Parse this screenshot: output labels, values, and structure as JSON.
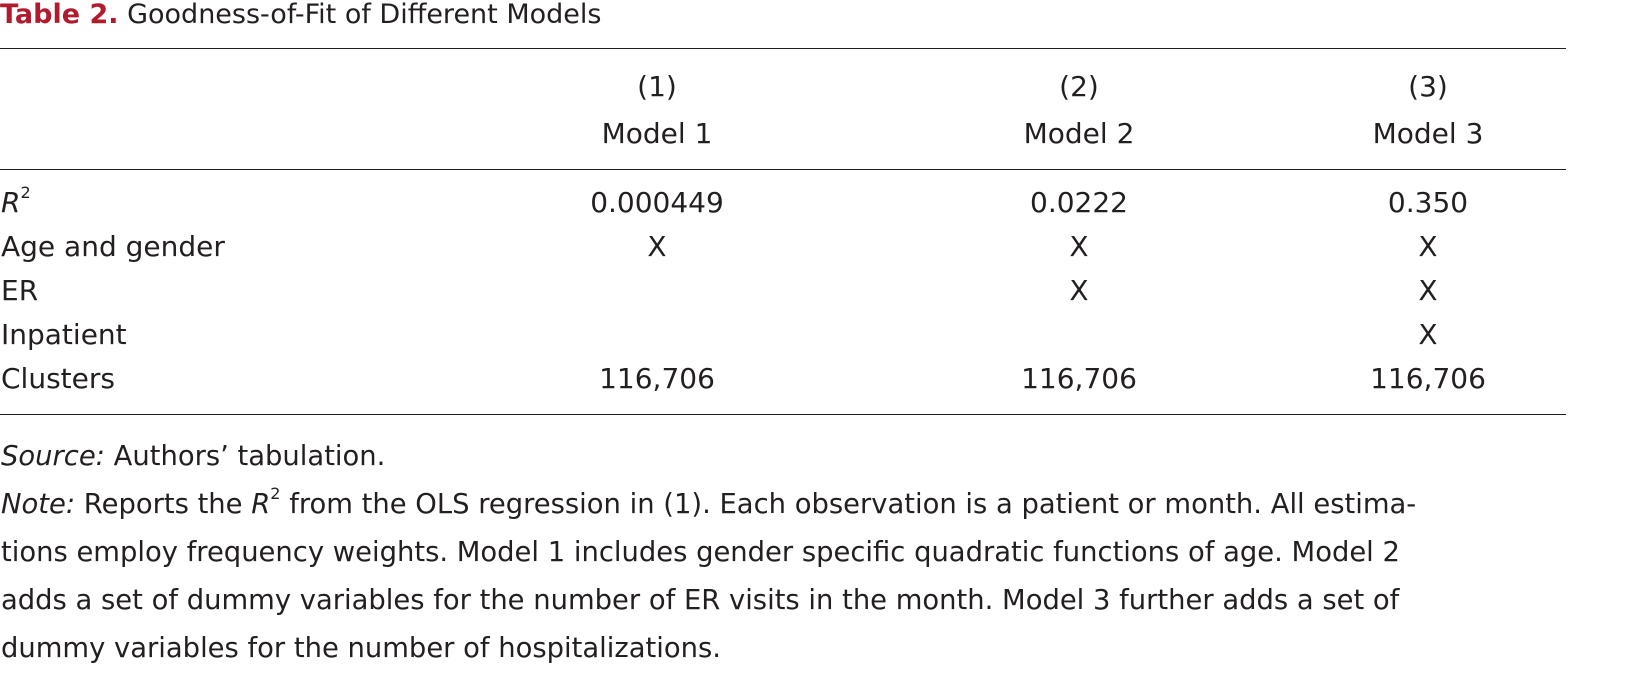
{
  "caption": {
    "label": "Table 2.",
    "title": "Goodness-of-Fit of Different Models"
  },
  "columns": [
    {
      "number": "(1)",
      "name": "Model 1"
    },
    {
      "number": "(2)",
      "name": "Model 2"
    },
    {
      "number": "(3)",
      "name": "Model 3"
    }
  ],
  "rows": [
    {
      "label": "R",
      "label_sup": "2",
      "values": [
        "0.000449",
        "0.0222",
        "0.350"
      ]
    },
    {
      "label": "Age and gender",
      "values": [
        "X",
        "X",
        "X"
      ]
    },
    {
      "label": "ER",
      "values": [
        "",
        "X",
        "X"
      ]
    },
    {
      "label": "Inpatient",
      "values": [
        "",
        "",
        "X"
      ]
    },
    {
      "label": "Clusters",
      "values": [
        "116,706",
        "116,706",
        "116,706"
      ]
    }
  ],
  "source": {
    "label": "Source:",
    "text": "Authors’ tabulation."
  },
  "note": {
    "label": "Note:",
    "text_before_r": "Reports the",
    "r_symbol": "R",
    "r_sup": "2",
    "text_after_r_line1": "from the OLS regression in (1). Each observation is a patient or month. All estima-",
    "line2": "tions employ frequency weights. Model 1 includes gender specific quadratic functions of age. Model 2",
    "line3": "adds a set of dummy variables for the number of ER visits in the month. Model 3 further adds a set of",
    "line4": "dummy variables for the number of hospitalizations."
  }
}
